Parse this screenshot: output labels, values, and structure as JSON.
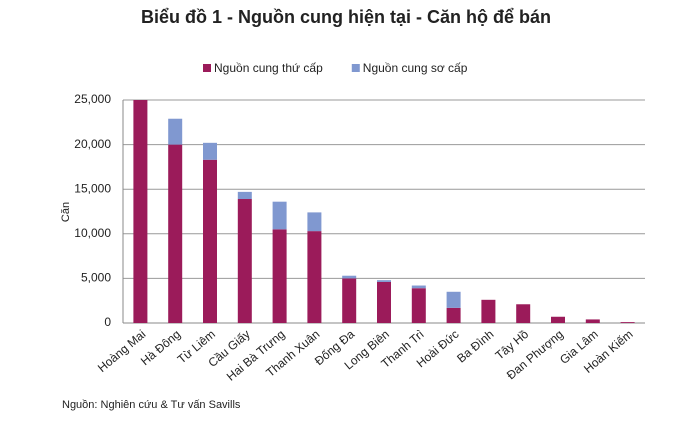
{
  "chart_data": {
    "type": "stacked_bar",
    "title": "Biểu đồ 1 - Nguồn cung hiện tại - Căn hộ để bán",
    "y_label": "Căn",
    "source": "Nguồn: Nghiên cứu & Tư vấn Savills",
    "categories": [
      "Hoàng Mai",
      "Hà Đông",
      "Từ Liêm",
      "Cầu Giấy",
      "Hai Bà Trưng",
      "Thanh Xuân",
      "Đống Đa",
      "Long Biên",
      "Thanh Trì",
      "Hoài Đức",
      "Ba Đình",
      "Tây Hồ",
      "Đan Phượng",
      "Gia Lâm",
      "Hoàn Kiếm"
    ],
    "series": [
      {
        "name": "Nguồn cung thứ cấp",
        "color": "#9b1b5a",
        "values": [
          25000,
          20000,
          18300,
          13900,
          10500,
          10300,
          5000,
          4600,
          3900,
          1700,
          2600,
          2100,
          700,
          400,
          100
        ]
      },
      {
        "name": "Nguồn cung sơ cấp",
        "color": "#8098d0",
        "values": [
          0,
          2900,
          1900,
          800,
          3100,
          2100,
          300,
          200,
          300,
          1800,
          0,
          0,
          0,
          0,
          0
        ]
      }
    ],
    "ylim": [
      0,
      25000
    ],
    "yticks": [
      0,
      {
        "value": 5000,
        "label": "5,000"
      },
      {
        "value": 10000,
        "label": "10,000"
      },
      {
        "value": 15000,
        "label": "15,000"
      },
      {
        "value": 20000,
        "label": "20,000"
      },
      {
        "value": 25000,
        "label": "25,000"
      }
    ],
    "grid": true
  }
}
